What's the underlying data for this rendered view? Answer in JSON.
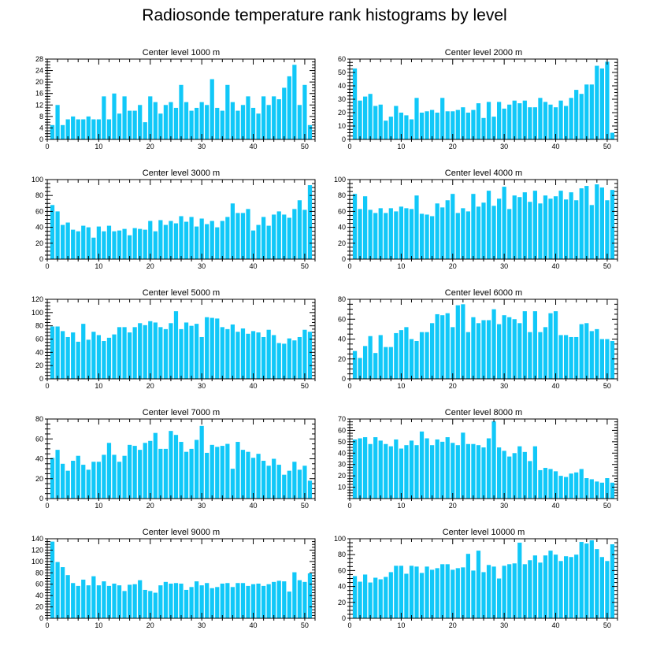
{
  "title": "Radiosonde temperature rank histograms by level",
  "chart_data": [
    {
      "type": "bar",
      "title": "Center level 1000 m",
      "xlim": [
        0,
        52
      ],
      "ylim": [
        0,
        28
      ],
      "xticks": [
        0,
        10,
        20,
        30,
        40,
        50
      ],
      "yticks": [
        0,
        4,
        8,
        12,
        16,
        20,
        24,
        28
      ],
      "categories": [
        1,
        2,
        3,
        4,
        5,
        6,
        7,
        8,
        9,
        10,
        11,
        12,
        13,
        14,
        15,
        16,
        17,
        18,
        19,
        20,
        21,
        22,
        23,
        24,
        25,
        26,
        27,
        28,
        29,
        30,
        31,
        32,
        33,
        34,
        35,
        36,
        37,
        38,
        39,
        40,
        41,
        42,
        43,
        44,
        45,
        46,
        47,
        48,
        49,
        50,
        51
      ],
      "values": [
        5,
        12,
        5,
        7,
        8,
        7,
        7,
        8,
        7,
        7,
        15,
        7,
        16,
        9,
        15,
        10,
        10,
        12,
        6,
        15,
        13,
        9,
        12,
        13,
        11,
        19,
        13,
        10,
        11,
        13,
        12,
        21,
        11,
        10,
        19,
        13,
        10,
        12,
        15,
        11,
        9,
        15,
        12,
        15,
        14,
        18,
        22,
        26,
        12,
        19,
        5
      ]
    },
    {
      "type": "bar",
      "title": "Center level 2000 m",
      "xlim": [
        0,
        52
      ],
      "ylim": [
        0,
        60
      ],
      "xticks": [
        0,
        10,
        20,
        30,
        40,
        50
      ],
      "yticks": [
        0,
        10,
        20,
        30,
        40,
        50,
        60
      ],
      "categories": [
        1,
        2,
        3,
        4,
        5,
        6,
        7,
        8,
        9,
        10,
        11,
        12,
        13,
        14,
        15,
        16,
        17,
        18,
        19,
        20,
        21,
        22,
        23,
        24,
        25,
        26,
        27,
        28,
        29,
        30,
        31,
        32,
        33,
        34,
        35,
        36,
        37,
        38,
        39,
        40,
        41,
        42,
        43,
        44,
        45,
        46,
        47,
        48,
        49,
        50,
        51
      ],
      "values": [
        53,
        29,
        32,
        34,
        25,
        26,
        14,
        17,
        25,
        20,
        18,
        15,
        31,
        20,
        21,
        22,
        20,
        31,
        21,
        21,
        22,
        24,
        20,
        22,
        27,
        16,
        28,
        17,
        28,
        23,
        26,
        29,
        27,
        29,
        24,
        24,
        31,
        28,
        26,
        24,
        29,
        25,
        31,
        37,
        34,
        41,
        41,
        55,
        53,
        58,
        5
      ]
    },
    {
      "type": "bar",
      "title": "Center level 3000 m",
      "xlim": [
        0,
        52
      ],
      "ylim": [
        0,
        100
      ],
      "xticks": [
        0,
        10,
        20,
        30,
        40,
        50
      ],
      "yticks": [
        0,
        20,
        40,
        60,
        80,
        100
      ],
      "categories": [
        1,
        2,
        3,
        4,
        5,
        6,
        7,
        8,
        9,
        10,
        11,
        12,
        13,
        14,
        15,
        16,
        17,
        18,
        19,
        20,
        21,
        22,
        23,
        24,
        25,
        26,
        27,
        28,
        29,
        30,
        31,
        32,
        33,
        34,
        35,
        36,
        37,
        38,
        39,
        40,
        41,
        42,
        43,
        44,
        45,
        46,
        47,
        48,
        49,
        50,
        51
      ],
      "values": [
        68,
        60,
        43,
        46,
        37,
        35,
        42,
        40,
        27,
        41,
        35,
        42,
        35,
        36,
        38,
        30,
        39,
        38,
        37,
        48,
        35,
        49,
        43,
        48,
        45,
        54,
        47,
        53,
        41,
        51,
        44,
        48,
        40,
        48,
        53,
        70,
        58,
        58,
        63,
        36,
        43,
        53,
        42,
        56,
        60,
        56,
        52,
        63,
        74,
        62,
        93
      ]
    },
    {
      "type": "bar",
      "title": "Center level 4000 m",
      "xlim": [
        0,
        52
      ],
      "ylim": [
        0,
        100
      ],
      "xticks": [
        0,
        10,
        20,
        30,
        40,
        50
      ],
      "yticks": [
        0,
        20,
        40,
        60,
        80,
        100
      ],
      "categories": [
        1,
        2,
        3,
        4,
        5,
        6,
        7,
        8,
        9,
        10,
        11,
        12,
        13,
        14,
        15,
        16,
        17,
        18,
        19,
        20,
        21,
        22,
        23,
        24,
        25,
        26,
        27,
        28,
        29,
        30,
        31,
        32,
        33,
        34,
        35,
        36,
        37,
        38,
        39,
        40,
        41,
        42,
        43,
        44,
        45,
        46,
        47,
        48,
        49,
        50,
        51
      ],
      "values": [
        82,
        63,
        79,
        62,
        58,
        64,
        58,
        64,
        60,
        66,
        64,
        63,
        80,
        57,
        56,
        54,
        70,
        65,
        74,
        82,
        58,
        64,
        60,
        82,
        66,
        71,
        86,
        67,
        76,
        91,
        63,
        80,
        78,
        84,
        72,
        86,
        70,
        80,
        76,
        79,
        86,
        75,
        84,
        74,
        89,
        92,
        68,
        94,
        90,
        74,
        87
      ]
    },
    {
      "type": "bar",
      "title": "Center level 5000 m",
      "xlim": [
        0,
        52
      ],
      "ylim": [
        0,
        120
      ],
      "xticks": [
        0,
        10,
        20,
        30,
        40,
        50
      ],
      "yticks": [
        0,
        20,
        40,
        60,
        80,
        100,
        120
      ],
      "categories": [
        1,
        2,
        3,
        4,
        5,
        6,
        7,
        8,
        9,
        10,
        11,
        12,
        13,
        14,
        15,
        16,
        17,
        18,
        19,
        20,
        21,
        22,
        23,
        24,
        25,
        26,
        27,
        28,
        29,
        30,
        31,
        32,
        33,
        34,
        35,
        36,
        37,
        38,
        39,
        40,
        41,
        42,
        43,
        44,
        45,
        46,
        47,
        48,
        49,
        50,
        51
      ],
      "values": [
        79,
        79,
        72,
        63,
        70,
        56,
        83,
        59,
        71,
        66,
        57,
        62,
        67,
        78,
        78,
        70,
        78,
        84,
        81,
        87,
        85,
        78,
        75,
        84,
        102,
        75,
        85,
        80,
        83,
        63,
        93,
        92,
        91,
        78,
        75,
        82,
        71,
        76,
        68,
        72,
        70,
        63,
        74,
        66,
        54,
        53,
        61,
        58,
        63,
        74,
        71
      ]
    },
    {
      "type": "bar",
      "title": "Center level 6000 m",
      "xlim": [
        0,
        52
      ],
      "ylim": [
        0,
        80
      ],
      "xticks": [
        0,
        10,
        20,
        30,
        40,
        50
      ],
      "yticks": [
        0,
        20,
        40,
        60,
        80
      ],
      "categories": [
        1,
        2,
        3,
        4,
        5,
        6,
        7,
        8,
        9,
        10,
        11,
        12,
        13,
        14,
        15,
        16,
        17,
        18,
        19,
        20,
        21,
        22,
        23,
        24,
        25,
        26,
        27,
        28,
        29,
        30,
        31,
        32,
        33,
        34,
        35,
        36,
        37,
        38,
        39,
        40,
        41,
        42,
        43,
        44,
        45,
        46,
        47,
        48,
        49,
        50,
        51
      ],
      "values": [
        28,
        21,
        33,
        43,
        26,
        44,
        32,
        32,
        46,
        49,
        52,
        40,
        38,
        47,
        47,
        56,
        65,
        64,
        66,
        52,
        74,
        75,
        47,
        62,
        56,
        59,
        59,
        70,
        55,
        64,
        62,
        60,
        56,
        68,
        47,
        68,
        47,
        52,
        66,
        68,
        44,
        44,
        42,
        42,
        55,
        56,
        48,
        50,
        40,
        40,
        38
      ]
    },
    {
      "type": "bar",
      "title": "Center level 7000 m",
      "xlim": [
        0,
        52
      ],
      "ylim": [
        0,
        80
      ],
      "xticks": [
        0,
        10,
        20,
        30,
        40,
        50
      ],
      "yticks": [
        0,
        20,
        40,
        60,
        80
      ],
      "categories": [
        1,
        2,
        3,
        4,
        5,
        6,
        7,
        8,
        9,
        10,
        11,
        12,
        13,
        14,
        15,
        16,
        17,
        18,
        19,
        20,
        21,
        22,
        23,
        24,
        25,
        26,
        27,
        28,
        29,
        30,
        31,
        32,
        33,
        34,
        35,
        36,
        37,
        38,
        39,
        40,
        41,
        42,
        43,
        44,
        45,
        46,
        47,
        48,
        49,
        50,
        51
      ],
      "values": [
        41,
        49,
        35,
        28,
        38,
        43,
        34,
        29,
        37,
        37,
        44,
        56,
        44,
        37,
        43,
        54,
        53,
        49,
        56,
        58,
        66,
        50,
        50,
        68,
        64,
        57,
        47,
        50,
        59,
        73,
        46,
        54,
        52,
        53,
        55,
        30,
        57,
        49,
        47,
        41,
        45,
        38,
        33,
        40,
        34,
        24,
        28,
        37,
        29,
        33,
        18
      ]
    },
    {
      "type": "bar",
      "title": "Center level 8000 m",
      "xlim": [
        0,
        52
      ],
      "ylim": [
        0,
        70
      ],
      "xticks": [
        0,
        10,
        20,
        30,
        40,
        50
      ],
      "yticks": [
        10,
        20,
        30,
        40,
        50,
        60,
        70
      ],
      "categories": [
        1,
        2,
        3,
        4,
        5,
        6,
        7,
        8,
        9,
        10,
        11,
        12,
        13,
        14,
        15,
        16,
        17,
        18,
        19,
        20,
        21,
        22,
        23,
        24,
        25,
        26,
        27,
        28,
        29,
        30,
        31,
        32,
        33,
        34,
        35,
        36,
        37,
        38,
        39,
        40,
        41,
        42,
        43,
        44,
        45,
        46,
        47,
        48,
        49,
        50,
        51
      ],
      "values": [
        52,
        53,
        54,
        48,
        54,
        51,
        48,
        46,
        52,
        44,
        47,
        51,
        47,
        59,
        53,
        47,
        52,
        50,
        54,
        49,
        47,
        58,
        48,
        48,
        47,
        45,
        53,
        68,
        45,
        42,
        37,
        40,
        46,
        41,
        33,
        46,
        25,
        27,
        26,
        24,
        20,
        19,
        22,
        23,
        26,
        18,
        17,
        15,
        14,
        18,
        14
      ]
    },
    {
      "type": "bar",
      "title": "Center level 9000 m",
      "xlim": [
        0,
        52
      ],
      "ylim": [
        0,
        140
      ],
      "xticks": [
        0,
        10,
        20,
        30,
        40,
        50
      ],
      "yticks": [
        0,
        20,
        40,
        60,
        80,
        100,
        120,
        140
      ],
      "categories": [
        1,
        2,
        3,
        4,
        5,
        6,
        7,
        8,
        9,
        10,
        11,
        12,
        13,
        14,
        15,
        16,
        17,
        18,
        19,
        20,
        21,
        22,
        23,
        24,
        25,
        26,
        27,
        28,
        29,
        30,
        31,
        32,
        33,
        34,
        35,
        36,
        37,
        38,
        39,
        40,
        41,
        42,
        43,
        44,
        45,
        46,
        47,
        48,
        49,
        50,
        51
      ],
      "values": [
        135,
        99,
        90,
        76,
        62,
        57,
        68,
        58,
        74,
        58,
        65,
        57,
        61,
        58,
        48,
        59,
        60,
        67,
        50,
        48,
        45,
        58,
        64,
        61,
        62,
        61,
        50,
        55,
        65,
        58,
        62,
        53,
        55,
        61,
        62,
        55,
        62,
        62,
        57,
        60,
        61,
        57,
        60,
        64,
        66,
        65,
        47,
        81,
        67,
        64,
        79
      ]
    },
    {
      "type": "bar",
      "title": "Center level 10000 m",
      "xlim": [
        0,
        52
      ],
      "ylim": [
        0,
        100
      ],
      "xticks": [
        0,
        10,
        20,
        30,
        40,
        50
      ],
      "yticks": [
        0,
        20,
        40,
        60,
        80,
        100
      ],
      "categories": [
        1,
        2,
        3,
        4,
        5,
        6,
        7,
        8,
        9,
        10,
        11,
        12,
        13,
        14,
        15,
        16,
        17,
        18,
        19,
        20,
        21,
        22,
        23,
        24,
        25,
        26,
        27,
        28,
        29,
        30,
        31,
        32,
        33,
        34,
        35,
        36,
        37,
        38,
        39,
        40,
        41,
        42,
        43,
        44,
        45,
        46,
        47,
        48,
        49,
        50,
        51
      ],
      "values": [
        53,
        46,
        55,
        45,
        51,
        49,
        52,
        58,
        66,
        66,
        56,
        66,
        65,
        57,
        65,
        61,
        63,
        68,
        68,
        61,
        63,
        64,
        81,
        60,
        85,
        58,
        67,
        65,
        50,
        66,
        68,
        69,
        95,
        68,
        73,
        79,
        70,
        79,
        85,
        80,
        72,
        78,
        77,
        80,
        96,
        94,
        98,
        87,
        77,
        72,
        93
      ]
    }
  ]
}
